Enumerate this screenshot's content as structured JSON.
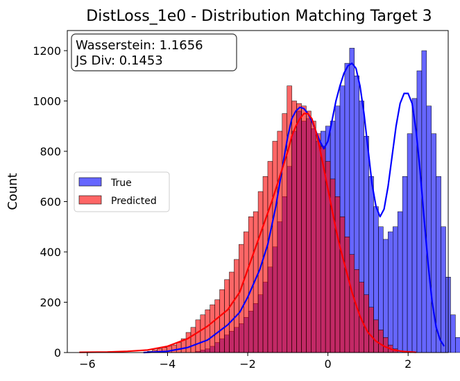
{
  "chart_data": {
    "type": "histogram",
    "title": "DistLoss_1e0 - Distribution Matching Target 3",
    "xlabel": "",
    "ylabel": "Count",
    "xlim": [
      -6.5,
      3.0
    ],
    "ylim": [
      0,
      1280
    ],
    "xticks": [
      -6,
      -4,
      -2,
      0,
      2
    ],
    "xtick_labels": [
      "−6",
      "−4",
      "−2",
      "0",
      "2"
    ],
    "yticks": [
      0,
      200,
      400,
      600,
      800,
      1000,
      1200
    ],
    "ytick_labels": [
      "0",
      "200",
      "400",
      "600",
      "800",
      "1000",
      "1200"
    ],
    "grid": false,
    "legend": {
      "position": "center-left",
      "entries": [
        "True",
        "Predicted"
      ]
    },
    "annotation": {
      "position": "top-left",
      "lines": [
        "Wasserstein: 1.1656",
        "JS Div: 0.1453"
      ]
    },
    "bin_width": 0.12,
    "series": [
      {
        "name": "True",
        "color": "#0000ff",
        "bin_start": -3.3,
        "counts": [
          5,
          10,
          15,
          25,
          40,
          55,
          70,
          85,
          100,
          115,
          140,
          165,
          195,
          230,
          280,
          340,
          420,
          520,
          620,
          740,
          880,
          960,
          920,
          930,
          890,
          840,
          880,
          900,
          920,
          980,
          1060,
          1150,
          1210,
          1100,
          1000,
          860,
          700,
          580,
          500,
          450,
          480,
          500,
          560,
          700,
          870,
          1010,
          1120,
          1200,
          980,
          870,
          700,
          500,
          300,
          150,
          60,
          30
        ],
        "kde": [
          [
            -4.6,
            0
          ],
          [
            -4.0,
            5
          ],
          [
            -3.5,
            20
          ],
          [
            -3.0,
            50
          ],
          [
            -2.5,
            110
          ],
          [
            -2.2,
            160
          ],
          [
            -2.0,
            220
          ],
          [
            -1.7,
            330
          ],
          [
            -1.5,
            430
          ],
          [
            -1.3,
            580
          ],
          [
            -1.1,
            770
          ],
          [
            -1.0,
            860
          ],
          [
            -0.9,
            930
          ],
          [
            -0.8,
            960
          ],
          [
            -0.7,
            975
          ],
          [
            -0.6,
            970
          ],
          [
            -0.5,
            950
          ],
          [
            -0.4,
            920
          ],
          [
            -0.3,
            880
          ],
          [
            -0.2,
            840
          ],
          [
            -0.1,
            810
          ],
          [
            0.0,
            840
          ],
          [
            0.1,
            920
          ],
          [
            0.2,
            1000
          ],
          [
            0.3,
            1060
          ],
          [
            0.4,
            1110
          ],
          [
            0.5,
            1140
          ],
          [
            0.6,
            1150
          ],
          [
            0.7,
            1130
          ],
          [
            0.8,
            1060
          ],
          [
            0.9,
            950
          ],
          [
            1.0,
            810
          ],
          [
            1.1,
            670
          ],
          [
            1.2,
            580
          ],
          [
            1.3,
            540
          ],
          [
            1.4,
            570
          ],
          [
            1.5,
            660
          ],
          [
            1.6,
            780
          ],
          [
            1.7,
            900
          ],
          [
            1.8,
            990
          ],
          [
            1.9,
            1030
          ],
          [
            2.0,
            1030
          ],
          [
            2.1,
            990
          ],
          [
            2.2,
            880
          ],
          [
            2.3,
            720
          ],
          [
            2.4,
            530
          ],
          [
            2.5,
            350
          ],
          [
            2.6,
            200
          ],
          [
            2.7,
            100
          ],
          [
            2.8,
            50
          ],
          [
            2.9,
            25
          ]
        ]
      },
      {
        "name": "Predicted",
        "color": "#ff0000",
        "bin_start": -4.5,
        "counts": [
          5,
          10,
          15,
          20,
          25,
          30,
          40,
          55,
          80,
          100,
          130,
          150,
          170,
          190,
          210,
          250,
          290,
          320,
          370,
          430,
          480,
          540,
          560,
          640,
          700,
          760,
          840,
          880,
          950,
          1060,
          1000,
          990,
          980,
          960,
          920,
          870,
          820,
          760,
          690,
          620,
          540,
          460,
          390,
          330,
          280,
          230,
          180,
          130,
          90,
          60,
          30,
          15
        ],
        "kde": [
          [
            -6.2,
            1
          ],
          [
            -5.5,
            2
          ],
          [
            -5.0,
            5
          ],
          [
            -4.5,
            10
          ],
          [
            -4.0,
            25
          ],
          [
            -3.5,
            55
          ],
          [
            -3.0,
            105
          ],
          [
            -2.5,
            170
          ],
          [
            -2.2,
            240
          ],
          [
            -2.0,
            330
          ],
          [
            -1.8,
            420
          ],
          [
            -1.6,
            510
          ],
          [
            -1.4,
            600
          ],
          [
            -1.2,
            700
          ],
          [
            -1.0,
            800
          ],
          [
            -0.9,
            860
          ],
          [
            -0.8,
            900
          ],
          [
            -0.7,
            930
          ],
          [
            -0.6,
            950
          ],
          [
            -0.5,
            950
          ],
          [
            -0.4,
            930
          ],
          [
            -0.3,
            880
          ],
          [
            -0.2,
            810
          ],
          [
            -0.1,
            730
          ],
          [
            0.0,
            650
          ],
          [
            0.1,
            570
          ],
          [
            0.2,
            490
          ],
          [
            0.3,
            420
          ],
          [
            0.4,
            360
          ],
          [
            0.5,
            300
          ],
          [
            0.6,
            240
          ],
          [
            0.7,
            190
          ],
          [
            0.8,
            145
          ],
          [
            0.9,
            110
          ],
          [
            1.0,
            80
          ],
          [
            1.2,
            45
          ],
          [
            1.4,
            25
          ],
          [
            1.6,
            12
          ],
          [
            1.8,
            6
          ],
          [
            2.0,
            3
          ],
          [
            2.2,
            1
          ]
        ]
      }
    ]
  }
}
